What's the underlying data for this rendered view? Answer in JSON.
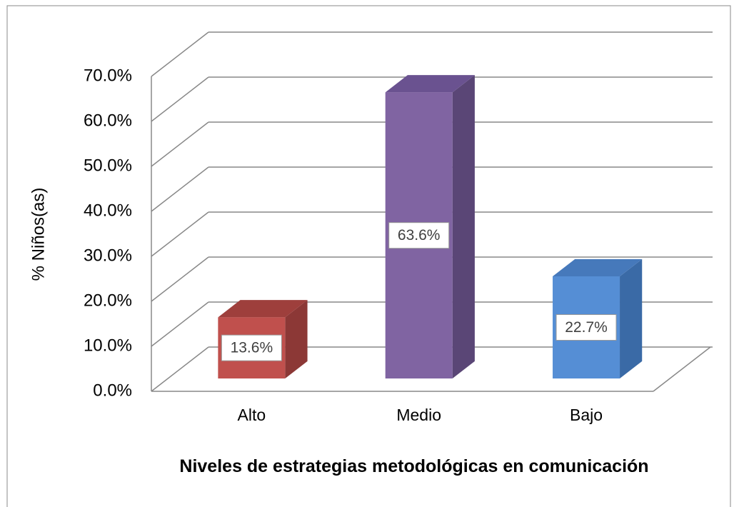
{
  "chart_data": {
    "type": "bar3d",
    "y_axis_label": "% Niños(as)",
    "x_axis_label": "Niveles de estrategias metodológicas en comunicación",
    "categories": [
      "Alto",
      "Medio",
      "Bajo"
    ],
    "values": [
      13.6,
      63.6,
      22.7
    ],
    "value_labels": [
      "13.6%",
      "63.6%",
      "22.7%"
    ],
    "colors": [
      "#c0504d",
      "#8064a2",
      "#558ed5"
    ],
    "side_colors": [
      "#8c3836",
      "#5a4676",
      "#3a6aa6"
    ],
    "top_colors": [
      "#9e3f3c",
      "#6a5290",
      "#4679bb"
    ],
    "ylim": [
      0,
      70
    ],
    "yticks": [
      {
        "value": 0,
        "label": "0.0%"
      },
      {
        "value": 10,
        "label": "10.0%"
      },
      {
        "value": 20,
        "label": "20.0%"
      },
      {
        "value": 30,
        "label": "30.0%"
      },
      {
        "value": 40,
        "label": "40.0%"
      },
      {
        "value": 50,
        "label": "50.0%"
      },
      {
        "value": 60,
        "label": "60.0%"
      },
      {
        "value": 70,
        "label": "70.0%"
      }
    ],
    "grid": true
  }
}
